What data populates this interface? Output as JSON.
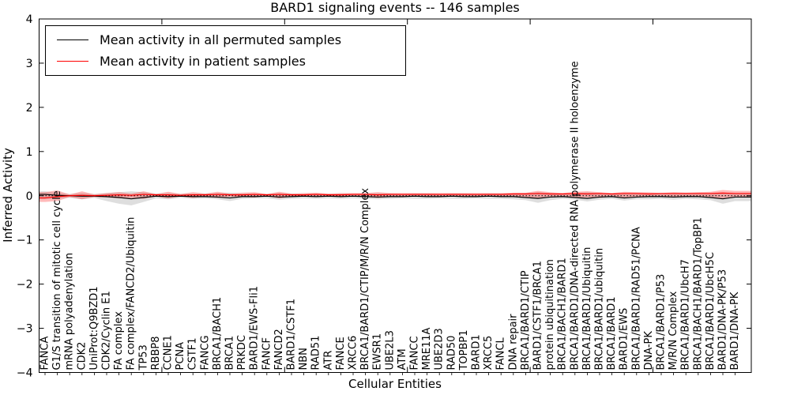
{
  "title": "BARD1 signaling events -- 146 samples",
  "axes": {
    "xlabel": "Cellular Entities",
    "ylabel": "Inferred Activity"
  },
  "legend": [
    {
      "label": "Mean activity in all permuted samples",
      "color": "#000000"
    },
    {
      "label": "Mean activity in patient samples",
      "color": "#ff0000"
    }
  ],
  "chart_data": {
    "type": "line",
    "title": "BARD1 signaling events -- 146 samples",
    "xlabel": "Cellular Entities",
    "ylabel": "Inferred Activity",
    "ylim": [
      -4,
      4
    ],
    "grid": false,
    "legend_position": "upper left",
    "yticks": {
      "values": [
        4,
        3,
        2,
        1,
        0,
        -1,
        -2,
        -3,
        -4
      ],
      "labels": [
        "4",
        "3",
        "2",
        "1",
        "0",
        "−1",
        "−2",
        "−3",
        "−4"
      ]
    },
    "x_major_tick_values": [
      10,
      20,
      30,
      40,
      50
    ],
    "zero_line": {
      "style": "dashed",
      "color": "#000000",
      "y": 0
    },
    "categories": [
      "FANCA",
      "G1/S transition of mitotic cell cycle",
      "mRNA polyadenylation",
      "CDK2",
      "UniProt:Q9BZD1",
      "CDK2/Cyclin E1",
      "FA complex",
      "FA complex/FANCD2/Ubiquitin",
      "TP53",
      "RBBP8",
      "CCNE1",
      "PCNA",
      "CSTF1",
      "FANCG",
      "BRCA1/BACH1",
      "BRCA1",
      "PRKDC",
      "BARD1/EWS-Fli1",
      "FANCF",
      "FANCD2",
      "BARD1/CSTF1",
      "NBN",
      "RAD51",
      "ATR",
      "FANCE",
      "XRCC6",
      "BRCA1/BARD1/CTIP/M/R/N Complex",
      "EWSR1",
      "UBE2L3",
      "ATM",
      "FANCC",
      "MRE11A",
      "UBE2D3",
      "RAD50",
      "TOPBP1",
      "BARD1",
      "XRCC5",
      "FANCL",
      "DNA repair",
      "BRCA1/BARD1/CTIP",
      "BARD1/CSTF1/BRCA1",
      "protein ubiquitination",
      "BRCA1/BACH1/BARD1",
      "BRCA1/BARD1/DNA-directed RNA polymerase II holoenzyme",
      "BRCA1/BARD1/Ubiquitin",
      "BRCA1/BARD1/ubiquitin",
      "BRCA1/BARD1",
      "BARD1/EWS",
      "BRCA1/BARD1/RAD51/PCNA",
      "DNA-PK",
      "BRCA1/BARD1/P53",
      "M/R/N Complex",
      "BRCA1/BARD1/UbcH7",
      "BRCA1/BACH1/BARD1/TopBP1",
      "BRCA1/BARD1/UbcH5C",
      "BARD1/DNA-PK/P53",
      "BARD1/DNA-PK"
    ],
    "series": [
      {
        "name": "Mean activity in all permuted samples",
        "color": "#000000",
        "values": [
          0.03,
          0.01,
          0.0,
          -0.01,
          -0.01,
          -0.02,
          -0.04,
          -0.07,
          -0.04,
          -0.01,
          -0.02,
          -0.01,
          -0.02,
          -0.02,
          -0.03,
          -0.05,
          -0.02,
          -0.02,
          -0.01,
          -0.03,
          -0.02,
          -0.01,
          -0.02,
          -0.01,
          -0.02,
          -0.01,
          -0.02,
          -0.03,
          -0.02,
          -0.02,
          -0.01,
          -0.02,
          -0.02,
          -0.01,
          -0.02,
          -0.02,
          -0.01,
          -0.02,
          -0.02,
          -0.04,
          -0.06,
          -0.03,
          -0.02,
          -0.04,
          -0.06,
          -0.03,
          -0.02,
          -0.05,
          -0.03,
          -0.02,
          -0.02,
          -0.03,
          -0.02,
          -0.02,
          -0.04,
          -0.07,
          -0.03
        ]
      },
      {
        "name": "Mean activity in patient samples",
        "color": "#ff0000",
        "values": [
          -0.05,
          -0.02,
          0.0,
          0.01,
          0.0,
          0.01,
          0.02,
          0.01,
          0.03,
          0.02,
          0.02,
          0.01,
          0.02,
          0.02,
          0.03,
          0.02,
          0.02,
          0.03,
          0.02,
          0.03,
          0.02,
          0.02,
          0.03,
          0.02,
          0.02,
          0.03,
          0.03,
          0.02,
          0.03,
          0.03,
          0.03,
          0.03,
          0.03,
          0.03,
          0.03,
          0.03,
          0.03,
          0.03,
          0.04,
          0.04,
          0.05,
          0.04,
          0.04,
          0.05,
          0.04,
          0.05,
          0.04,
          0.05,
          0.05,
          0.04,
          0.05,
          0.05,
          0.05,
          0.05,
          0.05,
          0.06,
          0.05
        ]
      }
    ],
    "bands": [
      {
        "name": "permuted samples range",
        "color": "#000000",
        "opacity": 0.13,
        "hi": [
          0.1,
          0.06,
          0.04,
          0.06,
          0.04,
          0.06,
          0.08,
          0.1,
          0.08,
          0.05,
          0.06,
          0.04,
          0.05,
          0.05,
          0.06,
          0.07,
          0.05,
          0.05,
          0.04,
          0.06,
          0.05,
          0.04,
          0.05,
          0.04,
          0.05,
          0.04,
          0.05,
          0.06,
          0.05,
          0.04,
          0.05,
          0.05,
          0.04,
          0.05,
          0.05,
          0.04,
          0.05,
          0.05,
          0.05,
          0.06,
          0.08,
          0.06,
          0.05,
          0.06,
          0.08,
          0.06,
          0.05,
          0.06,
          0.05,
          0.05,
          0.05,
          0.06,
          0.05,
          0.05,
          0.06,
          0.06,
          0.05
        ],
        "lo": [
          -0.08,
          -0.06,
          -0.05,
          -0.08,
          -0.05,
          -0.12,
          -0.18,
          -0.22,
          -0.14,
          -0.06,
          -0.08,
          -0.05,
          -0.07,
          -0.06,
          -0.08,
          -0.12,
          -0.07,
          -0.06,
          -0.06,
          -0.09,
          -0.07,
          -0.06,
          -0.07,
          -0.06,
          -0.07,
          -0.06,
          -0.07,
          -0.08,
          -0.07,
          -0.06,
          -0.07,
          -0.07,
          -0.06,
          -0.07,
          -0.07,
          -0.06,
          -0.07,
          -0.07,
          -0.08,
          -0.1,
          -0.16,
          -0.1,
          -0.07,
          -0.09,
          -0.13,
          -0.09,
          -0.07,
          -0.11,
          -0.08,
          -0.08,
          -0.07,
          -0.09,
          -0.07,
          -0.08,
          -0.1,
          -0.18,
          -0.12
        ]
      },
      {
        "name": "patient samples range",
        "color": "#ff0000",
        "opacity": 0.27,
        "hi": [
          0.08,
          0.12,
          0.03,
          0.1,
          0.03,
          0.06,
          0.08,
          0.05,
          0.1,
          0.04,
          0.09,
          0.04,
          0.08,
          0.05,
          0.09,
          0.05,
          0.07,
          0.08,
          0.04,
          0.09,
          0.05,
          0.06,
          0.07,
          0.05,
          0.06,
          0.06,
          0.06,
          0.08,
          0.06,
          0.06,
          0.06,
          0.06,
          0.06,
          0.06,
          0.06,
          0.06,
          0.06,
          0.06,
          0.07,
          0.07,
          0.11,
          0.08,
          0.06,
          0.09,
          0.1,
          0.08,
          0.06,
          0.09,
          0.08,
          0.08,
          0.06,
          0.08,
          0.07,
          0.08,
          0.09,
          0.13,
          0.11
        ],
        "lo": [
          -0.14,
          -0.12,
          -0.03,
          -0.08,
          -0.03,
          -0.04,
          -0.06,
          -0.05,
          -0.07,
          -0.02,
          -0.06,
          -0.02,
          -0.05,
          -0.02,
          -0.05,
          -0.02,
          -0.03,
          -0.04,
          -0.01,
          -0.06,
          -0.02,
          -0.02,
          -0.03,
          -0.02,
          -0.02,
          -0.02,
          -0.02,
          -0.05,
          -0.02,
          -0.02,
          -0.02,
          -0.02,
          -0.02,
          -0.02,
          -0.02,
          -0.02,
          -0.02,
          -0.02,
          -0.02,
          -0.03,
          -0.06,
          -0.03,
          -0.02,
          -0.04,
          -0.04,
          -0.05,
          -0.02,
          -0.04,
          -0.03,
          -0.03,
          -0.02,
          -0.04,
          -0.02,
          -0.03,
          -0.04,
          -0.06,
          -0.03
        ]
      }
    ]
  }
}
